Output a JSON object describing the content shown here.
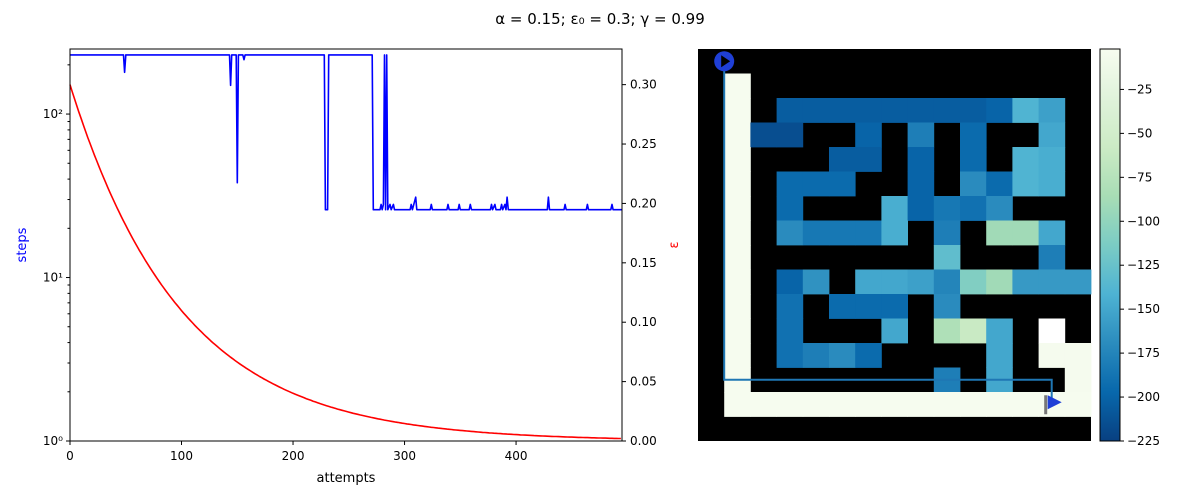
{
  "title": "α = 0.15; ε₀ = 0.3; γ = 0.99",
  "colors": {
    "steps": "#0000ff",
    "epsilon": "#ff0000",
    "path": "#1f77b4",
    "marker": "#1f3fd6"
  },
  "chart_data": [
    {
      "type": "line",
      "xlabel": "attempts",
      "ylabel": "steps",
      "ylabel_right": "ε",
      "xlim": [
        0,
        495
      ],
      "ylim": [
        1,
        250
      ],
      "yscale": "log",
      "ylim_right": [
        0,
        0.33
      ],
      "xticks": [
        "0",
        "100",
        "200",
        "300",
        "400"
      ],
      "yticks": [
        "10⁰",
        "10¹",
        "10²"
      ],
      "yticks_right": [
        "0.00",
        "0.05",
        "0.10",
        "0.15",
        "0.20",
        "0.25",
        "0.30"
      ],
      "series": [
        {
          "name": "steps",
          "axis": "left",
          "color": "#0000ff",
          "baseline": 230,
          "points": [
            [
              0,
              230
            ],
            [
              48,
              230
            ],
            [
              49,
              180
            ],
            [
              50,
              230
            ],
            [
              143,
              230
            ],
            [
              144,
              150
            ],
            [
              145,
              230
            ],
            [
              149,
              230
            ],
            [
              150,
              38
            ],
            [
              151,
              230
            ],
            [
              155,
              230
            ],
            [
              156,
              215
            ],
            [
              157,
              230
            ],
            [
              228,
              230
            ],
            [
              229,
              26
            ],
            [
              231,
              26
            ],
            [
              232,
              230
            ],
            [
              271,
              230
            ],
            [
              272,
              26
            ],
            [
              278,
              26
            ],
            [
              279,
              28
            ],
            [
              280,
              26
            ],
            [
              281,
              28
            ],
            [
              282,
              230
            ],
            [
              283,
              26
            ],
            [
              284,
              230
            ],
            [
              285,
              26
            ],
            [
              287,
              28
            ],
            [
              288,
              26
            ],
            [
              290,
              28
            ],
            [
              291,
              26
            ],
            [
              305,
              26
            ],
            [
              306,
              28
            ],
            [
              307,
              26
            ],
            [
              310,
              31
            ],
            [
              311,
              26
            ],
            [
              323,
              26
            ],
            [
              324,
              28
            ],
            [
              325,
              26
            ],
            [
              338,
              26
            ],
            [
              339,
              28
            ],
            [
              340,
              26
            ],
            [
              348,
              26
            ],
            [
              349,
              28
            ],
            [
              350,
              26
            ],
            [
              358,
              26
            ],
            [
              359,
              28
            ],
            [
              360,
              26
            ],
            [
              377,
              26
            ],
            [
              378,
              28
            ],
            [
              379,
              26
            ],
            [
              381,
              28
            ],
            [
              382,
              26
            ],
            [
              386,
              26
            ],
            [
              387,
              28
            ],
            [
              388,
              26
            ],
            [
              390,
              28
            ],
            [
              391,
              26
            ],
            [
              392,
              31
            ],
            [
              393,
              26
            ],
            [
              428,
              26
            ],
            [
              429,
              31
            ],
            [
              430,
              26
            ],
            [
              443,
              26
            ],
            [
              444,
              28
            ],
            [
              445,
              26
            ],
            [
              463,
              26
            ],
            [
              464,
              28
            ],
            [
              465,
              26
            ],
            [
              485,
              26
            ],
            [
              486,
              28
            ],
            [
              487,
              26
            ],
            [
              495,
              26
            ]
          ]
        },
        {
          "name": "ε",
          "axis": "right",
          "color": "#ff0000",
          "formula": "0.3 * 0.99^x",
          "x_start": 0,
          "x_end": 495
        }
      ]
    },
    {
      "type": "heatmap",
      "colorbar": {
        "ticks": [
          -25,
          -50,
          -75,
          -100,
          -125,
          -150,
          -175,
          -200,
          -225
        ],
        "range": [
          -225,
          -2
        ]
      },
      "legend": "wall = black; white = highest value",
      "rows": [
        [
          null,
          null,
          null,
          null,
          null,
          null,
          null,
          null,
          null,
          null,
          null,
          null,
          null,
          null,
          null
        ],
        [
          null,
          -3,
          null,
          null,
          null,
          null,
          null,
          null,
          null,
          null,
          null,
          null,
          null,
          null,
          null
        ],
        [
          null,
          -3,
          null,
          -205,
          -205,
          -205,
          -205,
          -205,
          -205,
          -205,
          -205,
          -200,
          -140,
          -155,
          null
        ],
        [
          null,
          -3,
          -215,
          -215,
          null,
          null,
          -200,
          null,
          -180,
          null,
          -195,
          null,
          null,
          -150,
          null
        ],
        [
          null,
          -3,
          null,
          null,
          null,
          -205,
          -205,
          null,
          -200,
          null,
          -195,
          null,
          -140,
          -145,
          null
        ],
        [
          null,
          -3,
          null,
          -195,
          -195,
          -195,
          null,
          null,
          -200,
          null,
          -170,
          -195,
          -140,
          -145,
          null
        ],
        [
          null,
          -3,
          null,
          -195,
          null,
          null,
          null,
          -145,
          -200,
          -185,
          -190,
          -170,
          null,
          null,
          null
        ],
        [
          null,
          -3,
          null,
          -170,
          -185,
          -185,
          -185,
          -145,
          null,
          -180,
          null,
          -90,
          -90,
          -150,
          null
        ],
        [
          null,
          -3,
          null,
          null,
          null,
          null,
          null,
          null,
          null,
          -130,
          null,
          null,
          null,
          -180,
          null
        ],
        [
          null,
          -3,
          null,
          -200,
          -165,
          null,
          -150,
          -150,
          -155,
          -175,
          -110,
          -90,
          -160,
          -160,
          -160,
          null
        ],
        [
          null,
          -3,
          null,
          -190,
          null,
          -195,
          -195,
          -195,
          null,
          -170,
          null,
          null,
          null,
          null,
          null
        ],
        [
          null,
          -3,
          null,
          -190,
          null,
          null,
          null,
          -150,
          null,
          -80,
          -60,
          -150,
          null,
          -2,
          null
        ],
        [
          null,
          -3,
          null,
          -190,
          -180,
          -170,
          -195,
          null,
          null,
          null,
          null,
          -150,
          null,
          -5,
          -5
        ],
        [
          null,
          -3,
          null,
          null,
          null,
          null,
          null,
          null,
          null,
          -180,
          null,
          -150,
          null,
          null,
          -5
        ],
        [
          null,
          -3,
          -3,
          -3,
          -3,
          -3,
          -3,
          -3,
          -3,
          -3,
          -3,
          -3,
          -3,
          -3,
          -3
        ],
        [
          null,
          null,
          null,
          null,
          null,
          null,
          null,
          null,
          null,
          null,
          null,
          null,
          null,
          null,
          null
        ]
      ],
      "path_cells": [
        [
          1,
          0.5
        ],
        [
          1,
          13.5
        ],
        [
          13.5,
          13.5
        ],
        [
          13.5,
          14.5
        ]
      ],
      "start_cell": [
        1,
        0.5
      ],
      "goal_cell": [
        13.5,
        14.5
      ]
    }
  ]
}
